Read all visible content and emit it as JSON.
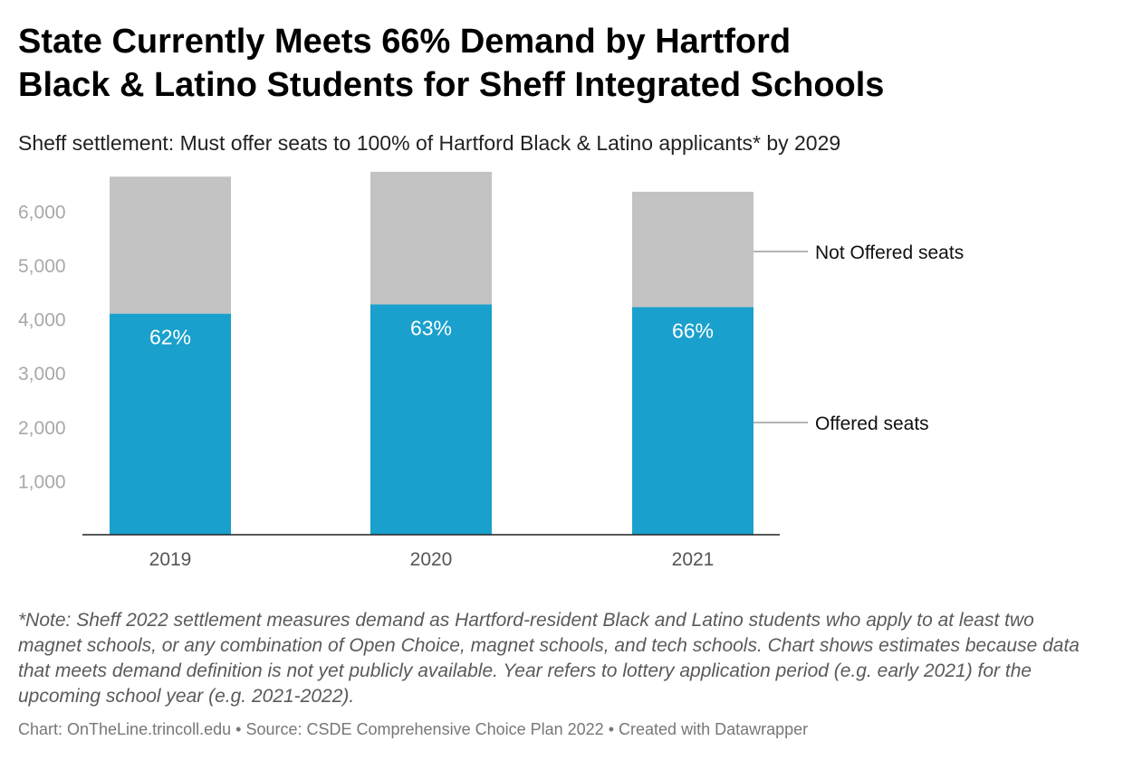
{
  "title_line1": "State Currently Meets 66% Demand by Hartford",
  "title_line2": "Black & Latino Students for Sheff Integrated Schools",
  "subtitle": "Sheff settlement: Must offer seats to 100% of Hartford Black & Latino applicants* by 2029",
  "note": "*Note: Sheff 2022 settlement measures demand as Hartford-resident Black and Latino students who apply to at least two magnet schools, or any combination of Open Choice, magnet schools, and tech schools. Chart shows estimates because data that meets demand definition is not yet publicly available. Year refers to lottery application period (e.g. early 2021) for the upcoming school year (e.g. 2021-2022).",
  "footer": {
    "chart_credit": "Chart: OnTheLine.trincoll.edu",
    "source": "Source: CSDE Comprehensive Choice Plan 2022",
    "tool": "Created with Datawrapper",
    "separator": "•"
  },
  "chart_data": {
    "type": "bar",
    "stacked": true,
    "categories": [
      "2019",
      "2020",
      "2021"
    ],
    "series": [
      {
        "name": "Offered seats",
        "values": [
          4100,
          4270,
          4220
        ],
        "color": "#1aa0cc",
        "data_labels": [
          "62%",
          "63%",
          "66%"
        ]
      },
      {
        "name": "Not Offered seats",
        "values": [
          2540,
          2460,
          2140
        ],
        "color": "#c3c3c3"
      }
    ],
    "ylim": [
      0,
      6700
    ],
    "yticks": [
      1000,
      2000,
      3000,
      4000,
      5000,
      6000
    ],
    "ytick_labels": [
      "1,000",
      "2,000",
      "3,000",
      "4,000",
      "5,000",
      "6,000"
    ],
    "grid": false,
    "legend": "direct labels on right",
    "xlabel": "",
    "ylabel": ""
  }
}
